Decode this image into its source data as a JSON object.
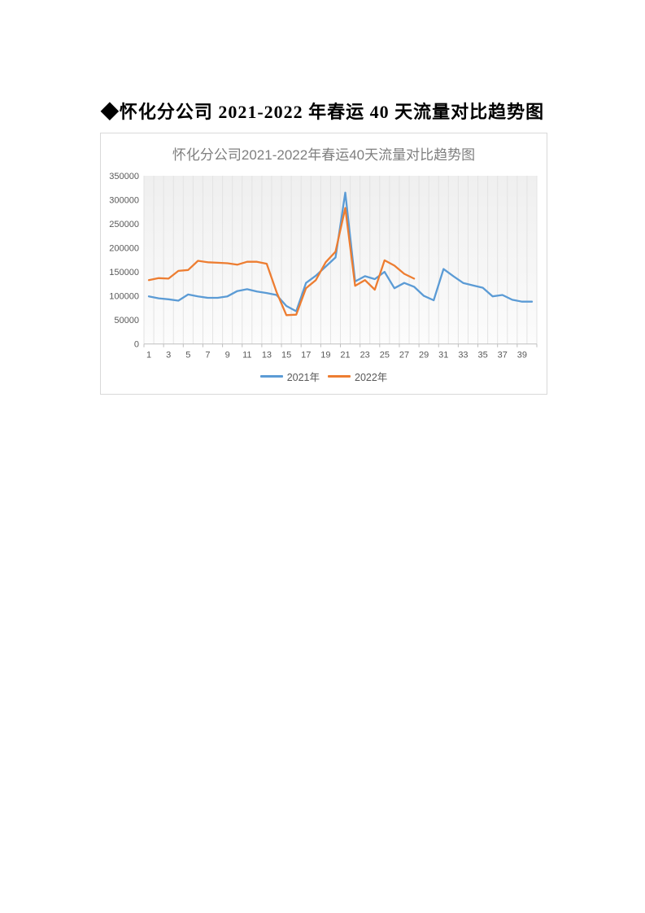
{
  "page": {
    "heading": "◆怀化分公司 2021-2022 年春运 40 天流量对比趋势图"
  },
  "chart": {
    "title": "怀化分公司2021-2022年春运40天流量对比趋势图",
    "axis_label_color": "#595959",
    "gridline_color": "#e3e3e3",
    "axis_line_color": "#bfbfbf"
  },
  "chart_data": {
    "type": "line",
    "title": "怀化分公司2021-2022年春运40天流量对比趋势图",
    "x": [
      1,
      2,
      3,
      4,
      5,
      6,
      7,
      8,
      9,
      10,
      11,
      12,
      13,
      14,
      15,
      16,
      17,
      18,
      19,
      20,
      21,
      22,
      23,
      24,
      25,
      26,
      27,
      28,
      29,
      30,
      31,
      32,
      33,
      34,
      35,
      36,
      37,
      38,
      39,
      40
    ],
    "x_tick_labels": [
      "1",
      "3",
      "5",
      "7",
      "9",
      "11",
      "13",
      "15",
      "17",
      "19",
      "21",
      "23",
      "25",
      "27",
      "29",
      "31",
      "33",
      "35",
      "37",
      "39"
    ],
    "series": [
      {
        "name": "2021年",
        "color": "#5B9BD5",
        "values": [
          99000,
          95000,
          93000,
          90000,
          103000,
          99000,
          96000,
          96000,
          99000,
          110000,
          114000,
          109000,
          106000,
          102000,
          79000,
          68000,
          127000,
          142000,
          161000,
          180000,
          315000,
          130000,
          141000,
          135000,
          150000,
          116000,
          127000,
          119000,
          100000,
          91000,
          156000,
          141000,
          127000,
          122000,
          117000,
          99000,
          102000,
          92000,
          88000,
          88000
        ]
      },
      {
        "name": "2022年",
        "color": "#ED7D31",
        "values": [
          133000,
          137000,
          136000,
          152000,
          154000,
          173000,
          170000,
          169000,
          168000,
          165000,
          171000,
          171000,
          167000,
          108000,
          60000,
          61000,
          116000,
          133000,
          170000,
          192000,
          283000,
          121000,
          133000,
          113000,
          174000,
          163000,
          146000,
          136000
        ]
      }
    ],
    "ylim": [
      0,
      350000
    ],
    "ytick_interval": 50000,
    "ytick_labels": [
      "0",
      "50000",
      "100000",
      "150000",
      "200000",
      "250000",
      "300000",
      "350000"
    ],
    "grid": "vertical",
    "legend_position": "bottom",
    "xlabel": "",
    "ylabel": ""
  }
}
